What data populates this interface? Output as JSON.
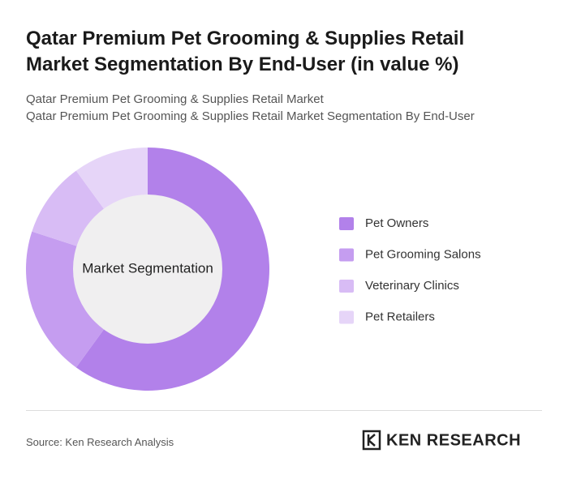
{
  "chart_data": {
    "type": "donut",
    "title": "Qatar Premium Pet Grooming & Supplies Retail Market Segmentation By End-User (in value %)",
    "subtitle": "Qatar Premium Pet Grooming & Supplies Retail Market",
    "subtitle2": "Qatar Premium Pet Grooming & Supplies Retail Market Segmentation By End-User",
    "center_label": "Market Segmentation",
    "categories": [
      "Pet Owners",
      "Pet Grooming Salons",
      "Veterinary Clinics",
      "Pet Retailers"
    ],
    "values": [
      60,
      20,
      10,
      10
    ],
    "colors": [
      "#b281ea",
      "#c59df0",
      "#d8bcf5",
      "#e6d5f8"
    ],
    "source": "Source: Ken Research Analysis",
    "brand": "KEN RESEARCH"
  }
}
